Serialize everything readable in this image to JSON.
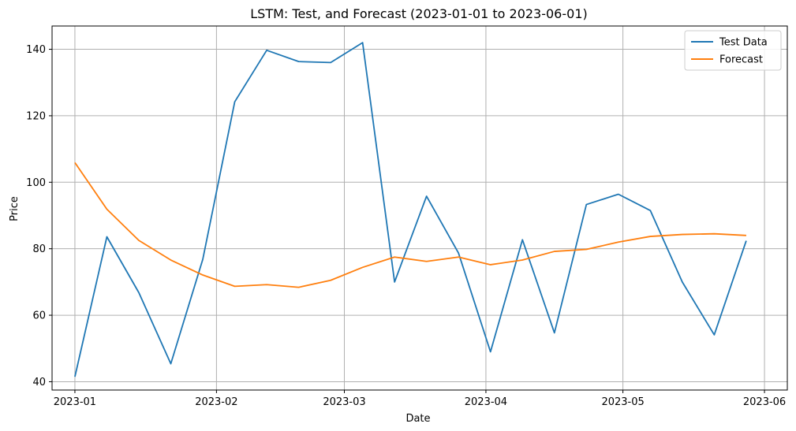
{
  "chart_data": {
    "type": "line",
    "title": "LSTM: Test, and Forecast (2023-01-01 to 2023-06-01)",
    "xlabel": "Date",
    "ylabel": "Price",
    "x_type": "date",
    "xlim": [
      "2022-12-27",
      "2023-06-06"
    ],
    "ylim": [
      37.5,
      147
    ],
    "x_ticks": [
      {
        "date": "2023-01-01",
        "label": "2023-01"
      },
      {
        "date": "2023-02-01",
        "label": "2023-02"
      },
      {
        "date": "2023-03-01",
        "label": "2023-03"
      },
      {
        "date": "2023-04-01",
        "label": "2023-04"
      },
      {
        "date": "2023-05-01",
        "label": "2023-05"
      },
      {
        "date": "2023-06-01",
        "label": "2023-06"
      }
    ],
    "y_ticks": [
      40,
      60,
      80,
      100,
      120,
      140
    ],
    "grid": true,
    "legend_position": "top-right",
    "x": [
      "2023-01-01",
      "2023-01-08",
      "2023-01-15",
      "2023-01-22",
      "2023-01-29",
      "2023-02-05",
      "2023-02-12",
      "2023-02-19",
      "2023-02-26",
      "2023-03-05",
      "2023-03-12",
      "2023-03-19",
      "2023-03-26",
      "2023-04-02",
      "2023-04-09",
      "2023-04-16",
      "2023-04-23",
      "2023-04-30",
      "2023-05-07",
      "2023-05-14",
      "2023-05-21",
      "2023-05-28"
    ],
    "series": [
      {
        "name": "Test Data",
        "color": "#1f77b4",
        "values": [
          41.5,
          83.6,
          66.8,
          45.4,
          76.8,
          124.2,
          139.7,
          136.3,
          136.0,
          142.0,
          70.0,
          95.8,
          78.7,
          49.0,
          82.7,
          54.7,
          93.3,
          96.4,
          91.5,
          70.0,
          54.1,
          82.4
        ]
      },
      {
        "name": "Forecast",
        "color": "#ff7f0e",
        "values": [
          105.9,
          91.9,
          82.5,
          76.6,
          72.1,
          68.7,
          69.2,
          68.4,
          70.5,
          74.4,
          77.5,
          76.2,
          77.5,
          75.2,
          76.6,
          79.2,
          79.8,
          82.0,
          83.7,
          84.3,
          84.5,
          84.0
        ]
      }
    ]
  }
}
